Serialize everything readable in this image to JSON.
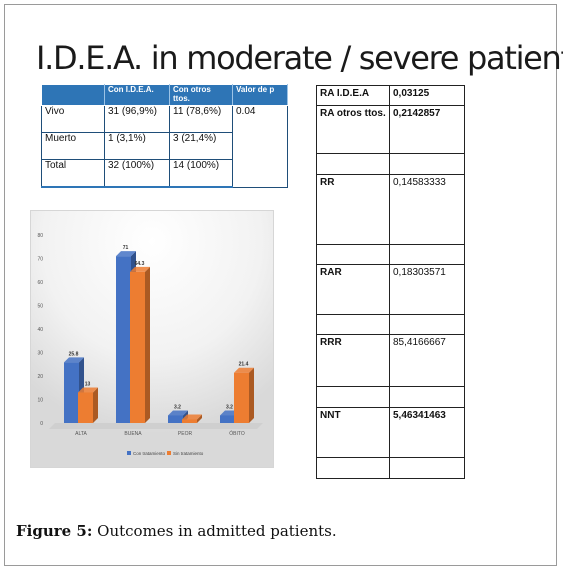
{
  "title": "I.D.E.A. in moderate / severe patients",
  "table1": {
    "headers": [
      "",
      "Con I.D.E.A.",
      "Con otros ttos.",
      "Valor de p"
    ],
    "rows": [
      {
        "label": "Vivo",
        "idea": "31 (96,9%)",
        "otros": "11 (78,6%)",
        "p": "0.04"
      },
      {
        "label": "Muerto",
        "idea": "1 (3,1%)",
        "otros": "3 (21,4%)",
        "p": ""
      },
      {
        "label": "Total",
        "idea": "32 (100%)",
        "otros": "14 (100%)",
        "p": ""
      }
    ]
  },
  "table2": {
    "rows": [
      {
        "label": "RA  I.D.E.A",
        "value": "0,03125"
      },
      {
        "label": "RA otros ttos.",
        "value": "0,2142857"
      },
      {
        "label": "",
        "value": ""
      },
      {
        "label": "RR",
        "value": "0,14583333"
      },
      {
        "label": "",
        "value": ""
      },
      {
        "label": "RAR",
        "value": "0,18303571"
      },
      {
        "label": "",
        "value": ""
      },
      {
        "label": "RRR",
        "value": "85,4166667"
      },
      {
        "label": "",
        "value": ""
      },
      {
        "label": "NNT",
        "value": "5,46341463"
      },
      {
        "label": "",
        "value": ""
      }
    ]
  },
  "chart_data": {
    "type": "bar",
    "categories": [
      "ALTA",
      "BUENA",
      "PEOR",
      "ÓBITO"
    ],
    "series": [
      {
        "name": "Con tratamiento",
        "values": [
          25.8,
          71,
          3.2,
          3.2
        ],
        "labels": [
          "25.8",
          "71",
          "3.2",
          "3.2"
        ],
        "color": "#4472c4"
      },
      {
        "name": "Sin tratamiento",
        "values": [
          13,
          64.3,
          1.5,
          21.4
        ],
        "labels": [
          "13",
          "64.3",
          "",
          "21.4"
        ],
        "color": "#ed7d31"
      }
    ],
    "y_ticks": [
      "0",
      "10",
      "20",
      "30",
      "40",
      "50",
      "60",
      "70",
      "80"
    ],
    "ylim": [
      0,
      80
    ],
    "legend_position": "bottom"
  },
  "caption": {
    "label": "Figure 5:",
    "text": " Outcomes in admitted patients."
  }
}
